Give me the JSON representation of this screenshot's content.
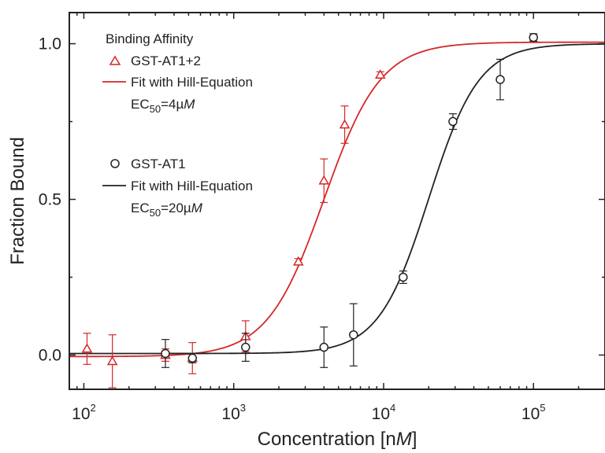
{
  "chart_data": {
    "type": "scatter",
    "x_scale": "log",
    "xlabel": "Concentration [nM]",
    "ylabel": "Fraction Bound",
    "xlim": [
      80,
      300000
    ],
    "ylim": [
      -0.11,
      1.1
    ],
    "x_ticks": [
      {
        "value": 100,
        "base": "10",
        "exp": "2"
      },
      {
        "value": 1000,
        "base": "10",
        "exp": "3"
      },
      {
        "value": 10000,
        "base": "10",
        "exp": "4"
      },
      {
        "value": 100000,
        "base": "10",
        "exp": "5"
      }
    ],
    "y_ticks": [
      {
        "value": 0.0,
        "label": "0.0"
      },
      {
        "value": 0.5,
        "label": "0.5"
      },
      {
        "value": 1.0,
        "label": "1.0"
      }
    ],
    "legend": {
      "title": "Binding Affinity",
      "placement": "top-left",
      "entries": [
        {
          "label": "GST-AT1+2",
          "marker": "triangle"
        },
        {
          "label": "Fit with Hill-Equation",
          "marker": "line"
        },
        {
          "label": "GST-AT1",
          "marker": "circle"
        },
        {
          "label": "Fit with Hill-Equation",
          "marker": "line"
        }
      ],
      "ec_labels": [
        {
          "prefix": "EC",
          "sub": "50",
          "value": "=4µ",
          "unit": "M"
        },
        {
          "prefix": "EC",
          "sub": "50",
          "value": "=20µ",
          "unit": "M"
        }
      ]
    },
    "series": [
      {
        "name": "GST-AT1+2",
        "color": "#d62728",
        "marker": "triangle",
        "points": [
          {
            "x": 105,
            "y": 0.02,
            "err": 0.05
          },
          {
            "x": 155,
            "y": -0.02,
            "err": 0.085
          },
          {
            "x": 350,
            "y": 0.0,
            "err": 0.02
          },
          {
            "x": 530,
            "y": -0.01,
            "err": 0.05
          },
          {
            "x": 1200,
            "y": 0.06,
            "err": 0.05
          },
          {
            "x": 2700,
            "y": 0.3,
            "err": 0.01
          },
          {
            "x": 4000,
            "y": 0.56,
            "err": 0.07
          },
          {
            "x": 5500,
            "y": 0.74,
            "err": 0.06
          },
          {
            "x": 9500,
            "y": 0.9,
            "err": 0.01
          }
        ],
        "fit": {
          "model": "hill",
          "ec50": 4000,
          "hill_n": 2.3,
          "bottom": -0.005,
          "top": 1.005
        }
      },
      {
        "name": "GST-AT1",
        "color": "#222222",
        "marker": "circle",
        "points": [
          {
            "x": 350,
            "y": 0.005,
            "err": 0.045
          },
          {
            "x": 530,
            "y": -0.01,
            "err": 0.015
          },
          {
            "x": 1200,
            "y": 0.025,
            "err": 0.045
          },
          {
            "x": 4000,
            "y": 0.025,
            "err": 0.065
          },
          {
            "x": 6300,
            "y": 0.065,
            "err": 0.1
          },
          {
            "x": 13500,
            "y": 0.25,
            "err": 0.02
          },
          {
            "x": 29000,
            "y": 0.75,
            "err": 0.025
          },
          {
            "x": 60000,
            "y": 0.885,
            "err": 0.065
          },
          {
            "x": 100000,
            "y": 1.02,
            "err": 0.012
          }
        ],
        "fit": {
          "model": "hill",
          "ec50": 20000,
          "hill_n": 2.6,
          "bottom": 0.005,
          "top": 1.0
        }
      }
    ]
  }
}
